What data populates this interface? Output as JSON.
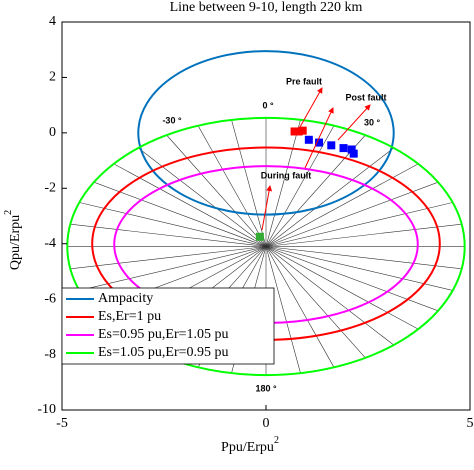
{
  "chart_data": {
    "type": "circle-diagram",
    "title": "Line between 9-10, length 220 km",
    "xlabel": "Ppu/Erpu",
    "xlabel_sup": "2",
    "ylabel": "Qpu/Erpu",
    "ylabel_sup": "2",
    "xlim": [
      -5,
      5
    ],
    "ylim": [
      -10,
      4
    ],
    "xticks": [
      -5,
      0,
      5
    ],
    "yticks": [
      4,
      2,
      0,
      -2,
      -4,
      -6,
      -8,
      -10
    ],
    "legend": "lower left",
    "series": [
      {
        "name": "Ampacity",
        "color": "#0072bd",
        "center": [
          0,
          0
        ],
        "radius": [
          3.13,
          2.95
        ]
      },
      {
        "name": "Es,Er=1 pu",
        "color": "#ff0000",
        "center": [
          0,
          -4.0
        ],
        "radius": [
          4.26,
          3.47
        ]
      },
      {
        "name": "Es=0.95 pu,Er=1.05 pu",
        "color": "#ff00ff",
        "center": [
          0,
          -4.03
        ],
        "radius": [
          3.72,
          2.83
        ]
      },
      {
        "name": "Es=1.05 pu,Er=0.95 pu",
        "color": "#00ff00",
        "center": [
          0,
          -4.1
        ],
        "radius": [
          4.87,
          4.64
        ]
      }
    ],
    "points": [
      {
        "color": "#ff0000",
        "x": [
          0.7,
          0.8,
          0.9
        ],
        "y": [
          0.05,
          0.05,
          0.08
        ]
      },
      {
        "color": "#0000ff",
        "x": [
          1.05,
          1.3,
          1.6,
          1.9,
          2.1,
          2.15
        ],
        "y": [
          -0.25,
          -0.35,
          -0.45,
          -0.55,
          -0.6,
          -0.75
        ]
      },
      {
        "color": "#33aa33",
        "x": [
          -0.15
        ],
        "y": [
          -3.75
        ]
      }
    ],
    "annotations": [
      "Pre fault",
      "Post fault",
      "During fault",
      "0 °",
      "30 °",
      "-30 °",
      "180 °"
    ]
  }
}
